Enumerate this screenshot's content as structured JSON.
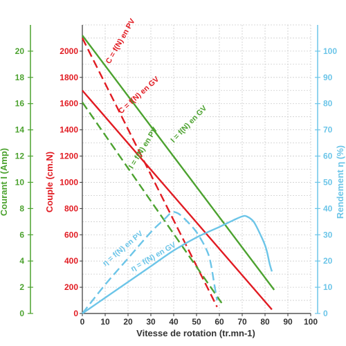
{
  "chart_data": {
    "type": "line",
    "xlabel": "Vitesse de rotation (tr.mn-1)",
    "y_torque_label": "Couple (cm.N)",
    "y_current_label": "Courant I (Amp)",
    "y_eff_label": "Rendement η (%)",
    "xlim": [
      0,
      100
    ],
    "x_ticks": [
      "0",
      "10",
      "20",
      "30",
      "40",
      "50",
      "60",
      "70",
      "80",
      "90",
      "100"
    ],
    "torque_range": [
      0,
      2200
    ],
    "torque_ticks": [
      "0",
      "200",
      "400",
      "600",
      "800",
      "1000",
      "1200",
      "1400",
      "1600",
      "1800",
      "2000"
    ],
    "current_range": [
      0,
      22
    ],
    "current_ticks": [
      "0",
      "2",
      "4",
      "6",
      "8",
      "10",
      "12",
      "14",
      "16",
      "18",
      "20"
    ],
    "eff_range": [
      0,
      110
    ],
    "eff_ticks": [
      "0",
      "10",
      "20",
      "30",
      "40",
      "50",
      "60",
      "70",
      "80",
      "90",
      "100"
    ],
    "grid": true,
    "colors": {
      "torque": "#e11b22",
      "current": "#4ca22f",
      "efficiency": "#6cc5e8",
      "grid": "#cccccc",
      "axis": "#333333"
    },
    "series": [
      {
        "name": "C = f(N) en PV",
        "axis": "torque",
        "color": "#e11b22",
        "dash": "dashed",
        "x": [
          0,
          59
        ],
        "y": [
          2100,
          50
        ],
        "label_pos": [
          12,
          1900
        ],
        "label_angle": -60
      },
      {
        "name": "C = f(N) en GV",
        "axis": "torque",
        "color": "#e11b22",
        "dash": "solid",
        "x": [
          0,
          83
        ],
        "y": [
          1700,
          30
        ],
        "label_pos": [
          17,
          1520
        ],
        "label_angle": -42
      },
      {
        "name": "I = f(N) en GV",
        "axis": "current",
        "color": "#4ca22f",
        "dash": "solid",
        "x": [
          0,
          84
        ],
        "y": [
          21.2,
          1.8
        ],
        "label_pos": [
          40,
          13
        ],
        "label_angle": -46
      },
      {
        "name": "I = f(N) en PV",
        "axis": "current",
        "color": "#4ca22f",
        "dash": "dashed",
        "x": [
          0,
          61
        ],
        "y": [
          16.1,
          0.8
        ],
        "label_pos": [
          22,
          11
        ],
        "label_angle": -58
      },
      {
        "name": "η = f(N) en PV",
        "axis": "efficiency",
        "color": "#6cc5e8",
        "dash": "dashed",
        "x": [
          0,
          10,
          20,
          30,
          36,
          39,
          41,
          43,
          46,
          50,
          54,
          56,
          58,
          59
        ],
        "y": [
          0,
          11,
          21,
          31,
          36,
          38.5,
          38.5,
          37.5,
          35,
          31,
          25,
          20,
          10,
          5
        ],
        "label_pos": [
          10,
          18
        ],
        "label_angle": -40
      },
      {
        "name": "η = f(N) en GV",
        "axis": "efficiency",
        "color": "#6cc5e8",
        "dash": "solid",
        "x": [
          0,
          10,
          20,
          30,
          40,
          50,
          60,
          66,
          70,
          72,
          75,
          78,
          80,
          81,
          82,
          83
        ],
        "y": [
          0,
          6,
          12,
          18,
          24,
          29,
          33,
          35.5,
          37,
          37,
          35,
          30,
          26,
          23,
          19,
          16
        ],
        "label_pos": [
          22,
          16
        ],
        "label_angle": -30
      }
    ]
  }
}
